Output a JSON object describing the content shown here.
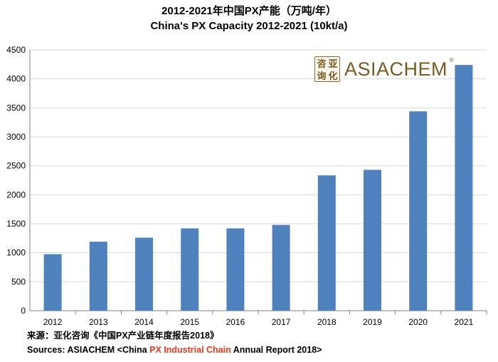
{
  "title_cn": "2012-2021年中国PX产能（万吨/年）",
  "title_en": "China's  PX Capacity 2012-2021 (10kt/a)",
  "logo": {
    "seal_chars": [
      "咨",
      "亚",
      "询",
      "化"
    ],
    "brand": "ASIACHEM",
    "reg_mark": "®"
  },
  "source": {
    "line1": "来源：亚化咨询《中国PX产业链年度报告2018》",
    "line2_prefix": "Sources: ASIACHEM <China ",
    "line2_highlight": "PX Industrial Chain",
    "line2_suffix": " Annual Report 2018>"
  },
  "colors": {
    "bar": "#4f81bd",
    "grid": "#d9d9d9",
    "axis": "#808080",
    "highlight": "#e03c1e"
  },
  "chart_data": {
    "type": "bar",
    "title": "China's  PX Capacity 2012-2021 (10kt/a)",
    "xlabel": "",
    "ylabel": "",
    "categories": [
      "2012",
      "2013",
      "2014",
      "2015",
      "2016",
      "2017",
      "2018",
      "2019",
      "2020",
      "2021"
    ],
    "values": [
      975,
      1190,
      1260,
      1420,
      1420,
      1480,
      2335,
      2430,
      3440,
      4240
    ],
    "ylim": [
      0,
      4500
    ],
    "yticks": [
      0,
      500,
      1000,
      1500,
      2000,
      2500,
      3000,
      3500,
      4000,
      4500
    ],
    "grid": true,
    "legend": "none"
  }
}
